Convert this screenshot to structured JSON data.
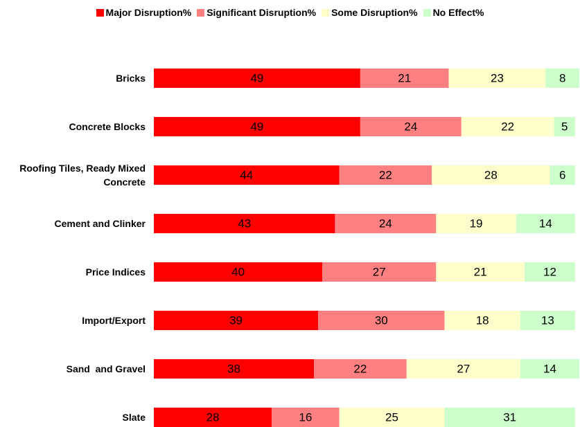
{
  "chart_data": {
    "type": "stacked_barh",
    "categories": [
      "Bricks",
      "Concrete Blocks",
      "Roofing Tiles, Ready Mixed Concrete",
      "Cement and Clinker",
      "Price Indices",
      "Import/Export",
      "Sand  and Gravel",
      "Slate"
    ],
    "series": [
      {
        "name": "Major Disruption%",
        "color": "#ff0000",
        "values": [
          49,
          49,
          44,
          43,
          40,
          39,
          38,
          28
        ]
      },
      {
        "name": "Significant Disruption%",
        "color": "#ff8080",
        "values": [
          21,
          24,
          22,
          24,
          27,
          30,
          22,
          16
        ]
      },
      {
        "name": "Some Disruption%",
        "color": "#ffffcc",
        "values": [
          23,
          22,
          28,
          19,
          21,
          18,
          27,
          25
        ]
      },
      {
        "name": "No Effect%",
        "color": "#ccffcc",
        "values": [
          8,
          5,
          6,
          14,
          12,
          13,
          14,
          31
        ]
      }
    ],
    "legend": "top"
  }
}
